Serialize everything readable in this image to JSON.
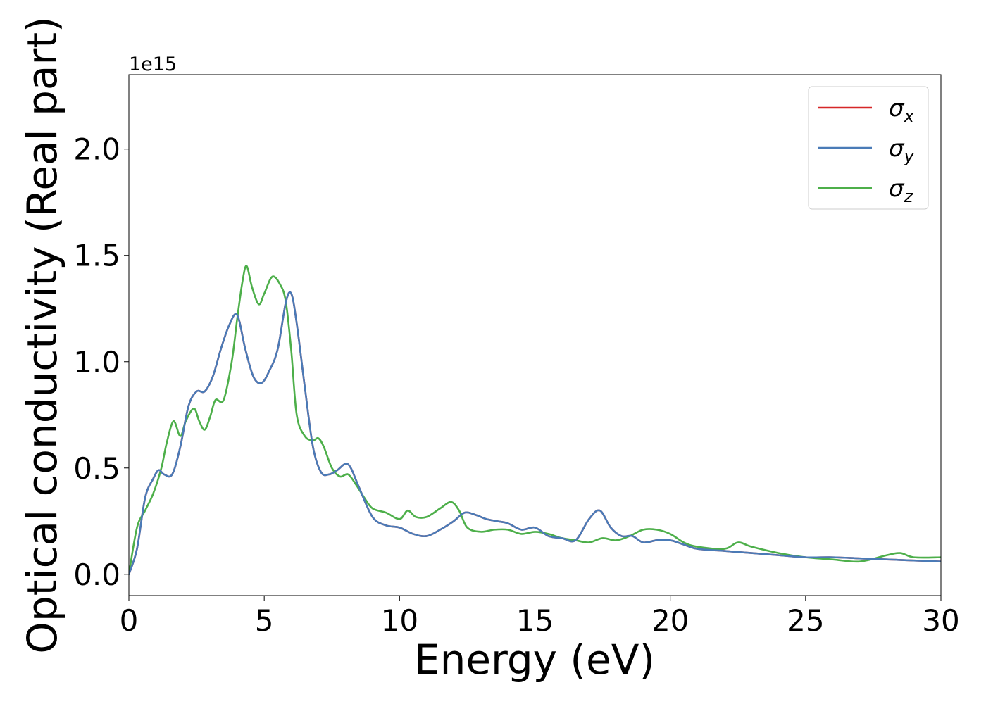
{
  "chart_data": {
    "type": "line",
    "title": "",
    "xlabel": "Energy (eV)",
    "ylabel": "Optical conductivity (Real part)",
    "y_scale_label": "1e15",
    "xlim": [
      0,
      30
    ],
    "ylim": [
      -0.1,
      2.35
    ],
    "x_ticks": [
      0,
      5,
      10,
      15,
      20,
      25,
      30
    ],
    "x_tick_labels": [
      "0",
      "5",
      "10",
      "15",
      "20",
      "25",
      "30"
    ],
    "y_ticks": [
      0.0,
      0.5,
      1.0,
      1.5,
      2.0
    ],
    "y_tick_labels": [
      "0.0",
      "0.5",
      "1.0",
      "1.5",
      "2.0"
    ],
    "grid": false,
    "legend_position": "top-right",
    "series": [
      {
        "name": "σx",
        "name_base": "σ",
        "name_sub": "x",
        "color": "#d62728",
        "x": [
          0,
          0.3,
          0.6,
          0.9,
          1.1,
          1.3,
          1.6,
          1.9,
          2.2,
          2.5,
          2.8,
          3.1,
          3.4,
          3.7,
          4.0,
          4.3,
          4.6,
          4.9,
          5.2,
          5.5,
          5.8,
          6.0,
          6.2,
          6.5,
          6.8,
          7.1,
          7.4,
          7.7,
          8.0,
          8.2,
          8.5,
          9.0,
          9.5,
          10.0,
          10.5,
          11.0,
          11.5,
          12.0,
          12.4,
          12.8,
          13.2,
          13.6,
          14.0,
          14.5,
          15.0,
          15.5,
          16.0,
          16.5,
          17.0,
          17.4,
          17.8,
          18.2,
          18.6,
          19.0,
          19.5,
          20.0,
          20.5,
          21.0,
          22.0,
          23.0,
          24.0,
          25.0,
          26.0,
          27.0,
          28.0,
          29.0,
          30.0
        ],
        "values": [
          0,
          0.12,
          0.36,
          0.45,
          0.49,
          0.47,
          0.47,
          0.6,
          0.79,
          0.86,
          0.86,
          0.93,
          1.06,
          1.17,
          1.22,
          1.06,
          0.93,
          0.9,
          0.96,
          1.06,
          1.28,
          1.32,
          1.18,
          0.88,
          0.6,
          0.48,
          0.47,
          0.49,
          0.52,
          0.5,
          0.41,
          0.27,
          0.23,
          0.22,
          0.19,
          0.18,
          0.21,
          0.25,
          0.29,
          0.28,
          0.26,
          0.25,
          0.24,
          0.21,
          0.22,
          0.18,
          0.17,
          0.16,
          0.26,
          0.3,
          0.22,
          0.18,
          0.18,
          0.15,
          0.16,
          0.16,
          0.14,
          0.12,
          0.11,
          0.1,
          0.09,
          0.08,
          0.08,
          0.075,
          0.07,
          0.065,
          0.06
        ]
      },
      {
        "name": "σy",
        "name_base": "σ",
        "name_sub": "y",
        "color": "#4a7bb7",
        "x": [
          0,
          0.3,
          0.6,
          0.9,
          1.1,
          1.3,
          1.6,
          1.9,
          2.2,
          2.5,
          2.8,
          3.1,
          3.4,
          3.7,
          4.0,
          4.3,
          4.6,
          4.9,
          5.2,
          5.5,
          5.8,
          6.0,
          6.2,
          6.5,
          6.8,
          7.1,
          7.4,
          7.7,
          8.0,
          8.2,
          8.5,
          9.0,
          9.5,
          10.0,
          10.5,
          11.0,
          11.5,
          12.0,
          12.4,
          12.8,
          13.2,
          13.6,
          14.0,
          14.5,
          15.0,
          15.5,
          16.0,
          16.5,
          17.0,
          17.4,
          17.8,
          18.2,
          18.6,
          19.0,
          19.5,
          20.0,
          20.5,
          21.0,
          22.0,
          23.0,
          24.0,
          25.0,
          26.0,
          27.0,
          28.0,
          29.0,
          30.0
        ],
        "values": [
          0,
          0.12,
          0.36,
          0.45,
          0.49,
          0.47,
          0.47,
          0.6,
          0.79,
          0.86,
          0.86,
          0.93,
          1.06,
          1.17,
          1.22,
          1.06,
          0.93,
          0.9,
          0.96,
          1.06,
          1.28,
          1.32,
          1.18,
          0.88,
          0.6,
          0.48,
          0.47,
          0.49,
          0.52,
          0.5,
          0.41,
          0.27,
          0.23,
          0.22,
          0.19,
          0.18,
          0.21,
          0.25,
          0.29,
          0.28,
          0.26,
          0.25,
          0.24,
          0.21,
          0.22,
          0.18,
          0.17,
          0.16,
          0.26,
          0.3,
          0.22,
          0.18,
          0.18,
          0.15,
          0.16,
          0.16,
          0.14,
          0.12,
          0.11,
          0.1,
          0.09,
          0.08,
          0.08,
          0.075,
          0.07,
          0.065,
          0.06
        ]
      },
      {
        "name": "σz",
        "name_base": "σ",
        "name_sub": "z",
        "color": "#4daf4a",
        "x": [
          0,
          0.3,
          0.6,
          0.9,
          1.2,
          1.4,
          1.65,
          1.9,
          2.1,
          2.4,
          2.6,
          2.8,
          3.0,
          3.2,
          3.5,
          3.8,
          4.0,
          4.2,
          4.35,
          4.55,
          4.8,
          5.0,
          5.3,
          5.6,
          5.8,
          6.0,
          6.2,
          6.5,
          6.8,
          7.0,
          7.2,
          7.5,
          7.8,
          8.1,
          8.4,
          8.7,
          9.0,
          9.5,
          10.0,
          10.3,
          10.6,
          11.0,
          11.5,
          11.9,
          12.2,
          12.5,
          13.0,
          13.5,
          14.0,
          14.5,
          15.0,
          15.5,
          16.0,
          16.5,
          17.0,
          17.5,
          18.0,
          18.5,
          19.0,
          19.5,
          20.0,
          20.5,
          21.0,
          22.0,
          22.5,
          23.0,
          24.0,
          25.0,
          26.0,
          27.0,
          28.0,
          28.5,
          29.0,
          30.0
        ],
        "values": [
          0,
          0.22,
          0.3,
          0.38,
          0.5,
          0.62,
          0.72,
          0.65,
          0.72,
          0.78,
          0.72,
          0.68,
          0.74,
          0.82,
          0.82,
          1.0,
          1.2,
          1.38,
          1.45,
          1.35,
          1.27,
          1.32,
          1.4,
          1.36,
          1.28,
          1.05,
          0.75,
          0.65,
          0.63,
          0.64,
          0.6,
          0.5,
          0.46,
          0.47,
          0.42,
          0.36,
          0.31,
          0.29,
          0.26,
          0.3,
          0.27,
          0.27,
          0.31,
          0.34,
          0.3,
          0.22,
          0.2,
          0.21,
          0.21,
          0.19,
          0.2,
          0.19,
          0.17,
          0.16,
          0.15,
          0.17,
          0.16,
          0.18,
          0.21,
          0.21,
          0.19,
          0.15,
          0.13,
          0.12,
          0.15,
          0.13,
          0.1,
          0.08,
          0.07,
          0.06,
          0.09,
          0.1,
          0.08,
          0.08
        ]
      }
    ]
  }
}
